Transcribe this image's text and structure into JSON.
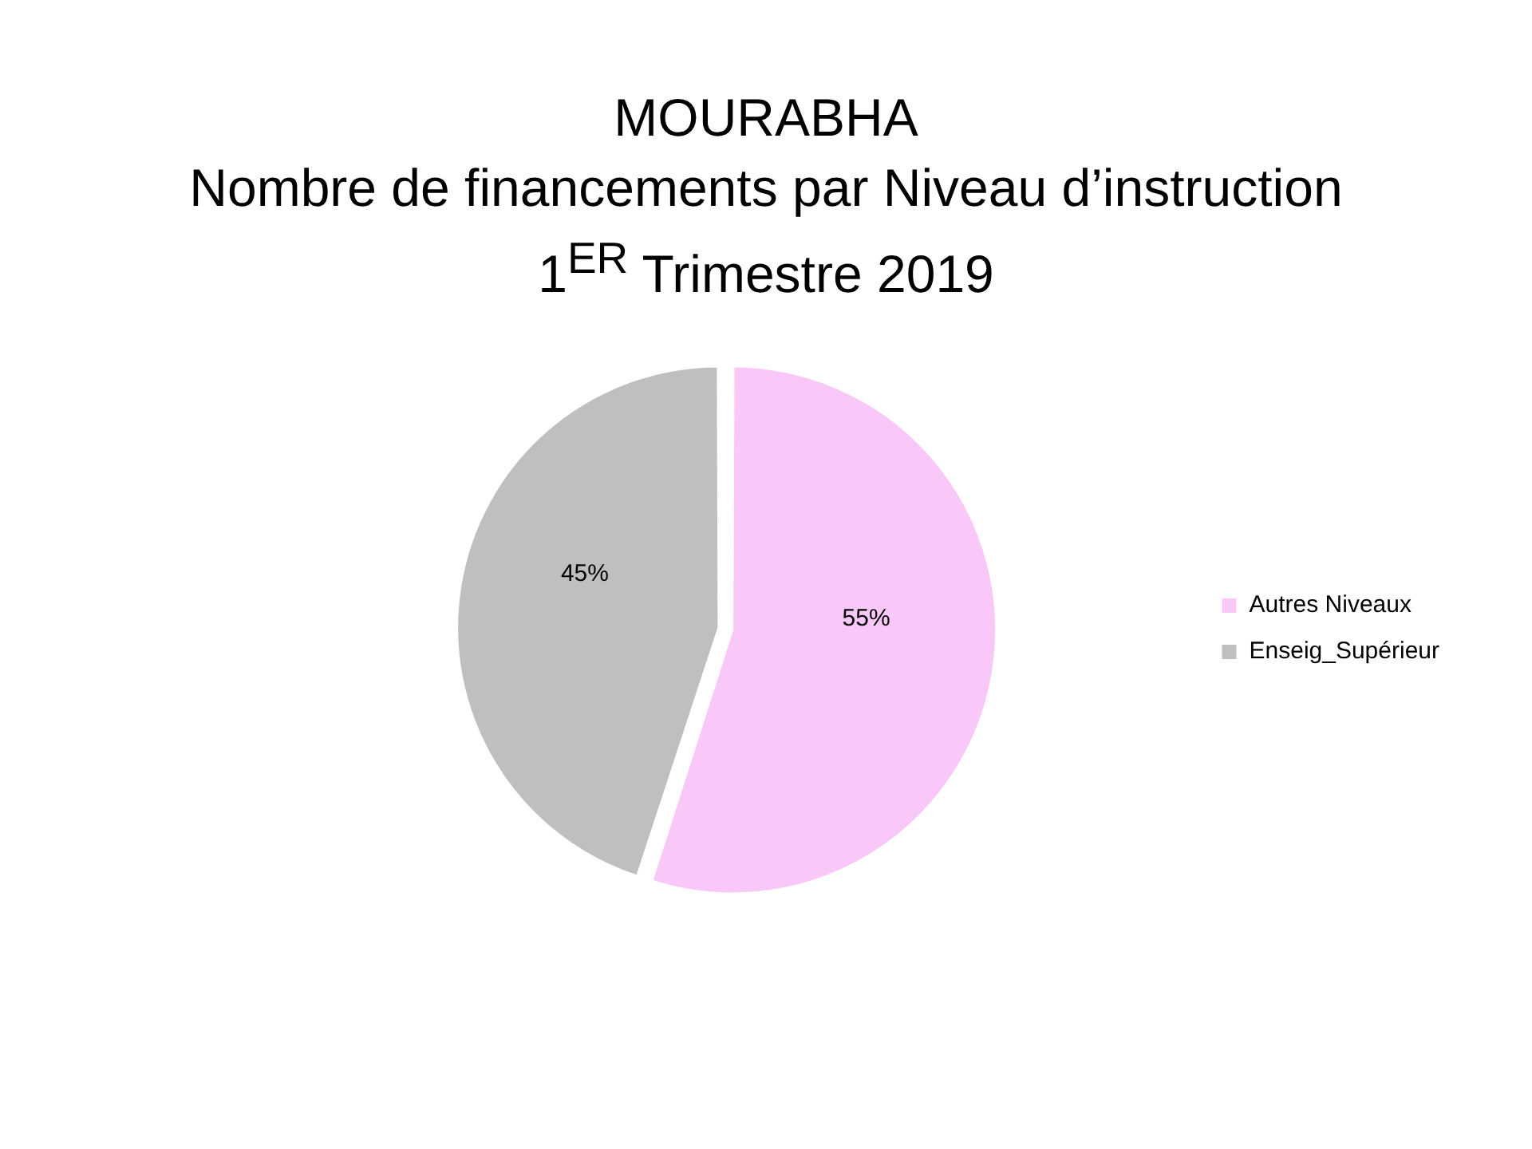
{
  "chart_data": {
    "type": "pie",
    "title": "MOURABHA\nNombre de financements par Niveau d’instruction\n1$^{ER}$ Trimestre 2019",
    "categories": [
      "Autres Niveaux",
      "Enseig_Supérieur"
    ],
    "values": [
      55,
      45
    ],
    "colors": [
      "#f9c8f9",
      "#bfbfbf"
    ],
    "value_labels": [
      "55%",
      "45%"
    ],
    "legend": "right"
  }
}
